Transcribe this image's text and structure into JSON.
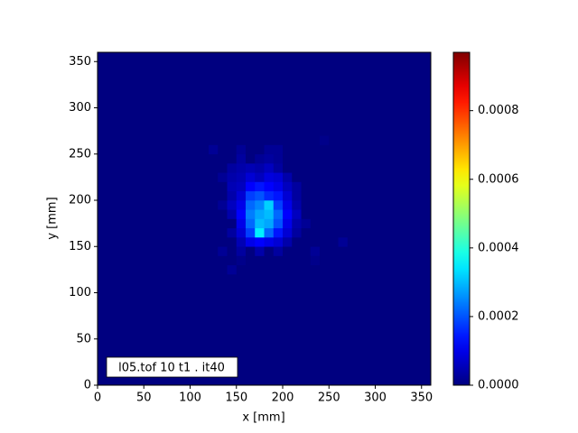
{
  "chart_data": {
    "type": "histogram2d",
    "colormap": "jet",
    "xlabel": "x [mm]",
    "ylabel": "y [mm]",
    "annotation": "l05.tof 10 t1 .  it40",
    "xlim": [
      0,
      360
    ],
    "ylim": [
      0,
      360
    ],
    "xticks": [
      0,
      50,
      100,
      150,
      200,
      250,
      300,
      350
    ],
    "yticks": [
      0,
      50,
      100,
      150,
      200,
      250,
      300,
      350
    ],
    "xbins": [
      0,
      120,
      130,
      140,
      150,
      160,
      170,
      180,
      190,
      200,
      210,
      220,
      230,
      240,
      250,
      260,
      270,
      360
    ],
    "ybins": [
      0,
      120,
      130,
      140,
      150,
      160,
      170,
      180,
      190,
      200,
      210,
      220,
      230,
      240,
      250,
      260,
      270,
      360
    ],
    "z": [
      [
        0,
        0,
        0,
        0,
        0,
        0,
        0,
        0,
        0,
        0,
        0,
        0,
        0,
        0,
        0,
        0,
        0
      ],
      [
        0,
        0,
        0,
        2e-05,
        0,
        0,
        0,
        0,
        0,
        0,
        0,
        0,
        0,
        0,
        0,
        0,
        0
      ],
      [
        0,
        0,
        0,
        0,
        1e-05,
        0,
        0,
        0,
        0,
        0,
        0,
        0,
        1e-05,
        0,
        0,
        0,
        0
      ],
      [
        0,
        0,
        2e-05,
        0,
        3e-05,
        0,
        4e-05,
        0,
        3e-05,
        0,
        0,
        0,
        2e-05,
        0,
        0,
        0,
        0
      ],
      [
        0,
        0,
        0,
        0,
        5e-05,
        0.0001,
        0.00012,
        0.0001,
        8e-05,
        4e-05,
        0,
        0,
        0,
        0,
        0,
        2e-05,
        0
      ],
      [
        0,
        0,
        0,
        3e-05,
        8e-05,
        0.00018,
        0.00035,
        0.00022,
        0.00014,
        8e-05,
        3e-05,
        0,
        0,
        0,
        0,
        0,
        0
      ],
      [
        0,
        0,
        0,
        0,
        0.0001,
        0.00022,
        0.0003,
        0.00028,
        0.0002,
        0.0001,
        4e-05,
        2e-05,
        0,
        0,
        0,
        0,
        0
      ],
      [
        0,
        0,
        0,
        4e-05,
        0.00012,
        0.00024,
        0.00028,
        0.0003,
        0.00022,
        0.00012,
        6e-05,
        0,
        0,
        0,
        0,
        0,
        0
      ],
      [
        0,
        0,
        2e-05,
        6e-05,
        0.0001,
        0.00022,
        0.00025,
        0.00032,
        0.00018,
        0.0001,
        4e-05,
        0,
        0,
        0,
        0,
        0,
        0
      ],
      [
        0,
        0,
        0,
        4e-05,
        8e-05,
        0.00018,
        0.0002,
        0.00016,
        0.00014,
        8e-05,
        3e-05,
        0,
        0,
        0,
        0,
        0,
        0
      ],
      [
        0,
        0,
        0,
        5e-05,
        6e-05,
        0.00012,
        0.00014,
        0.00012,
        0.0001,
        6e-05,
        3e-05,
        0,
        0,
        0,
        0,
        0,
        0
      ],
      [
        0,
        0,
        2e-05,
        4e-05,
        5e-05,
        8e-05,
        6e-05,
        9e-05,
        8e-05,
        4e-05,
        0,
        0,
        0,
        0,
        0,
        0,
        0
      ],
      [
        0,
        0,
        0,
        3e-05,
        4e-05,
        5e-05,
        4e-05,
        6e-05,
        3e-05,
        0,
        0,
        0,
        0,
        0,
        0,
        0,
        0
      ],
      [
        0,
        0,
        0,
        0,
        3e-05,
        0,
        2e-05,
        3e-05,
        2e-05,
        0,
        0,
        0,
        0,
        0,
        0,
        0,
        0
      ],
      [
        0,
        2e-05,
        0,
        0,
        2e-05,
        0,
        0,
        2e-05,
        2e-05,
        0,
        0,
        0,
        0,
        0,
        0,
        0,
        0
      ],
      [
        0,
        0,
        0,
        0,
        0,
        0,
        0,
        0,
        0,
        0,
        0,
        0,
        0,
        1e-05,
        0,
        0,
        0
      ],
      [
        0,
        0,
        0,
        0,
        0,
        0,
        0,
        0,
        0,
        0,
        0,
        0,
        0,
        0,
        0,
        0,
        0
      ]
    ],
    "clim": [
      0,
      0.00097
    ],
    "cticks": [
      {
        "value": 0,
        "label": "0.0000"
      },
      {
        "value": 0.0002,
        "label": "0.0002"
      },
      {
        "value": 0.0004,
        "label": "0.0004"
      },
      {
        "value": 0.0006,
        "label": "0.0006"
      },
      {
        "value": 0.0008,
        "label": "0.0008"
      }
    ]
  }
}
